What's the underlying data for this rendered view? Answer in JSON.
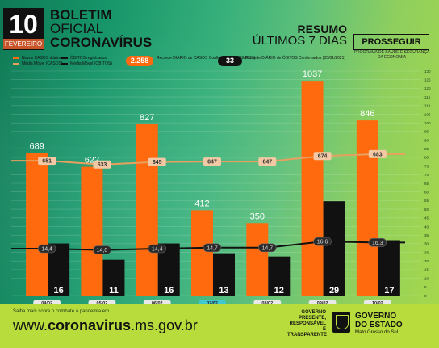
{
  "header": {
    "day": "10",
    "month": "FEVEREIRO",
    "title_line1": "BOLETIM",
    "title_line2": "OFICIAL",
    "title_line3": "CORONAVÍRUS",
    "resumo": "RESUMO",
    "ultimos": "ÚLTIMOS 7 DIAS",
    "program": "PROSSEGUIR",
    "program_sub": "PROGRAMA DE SAÚDE E SEGURANÇA DA ECONOMIA"
  },
  "legend": {
    "cases": "Novos CASOS diários",
    "cases_avg": "Média Móvel (CASOS)",
    "deaths": "ÓBITOS registrados",
    "deaths_avg": "Média Móvel (ÓBITOS)"
  },
  "records": {
    "cases_value": "2.258",
    "cases_note": "Recorde DIÁRIO de CASOS Confirmados (11/09/2020)",
    "deaths_value": "33",
    "deaths_note": "Recorde DIÁRIO de ÓBITOS Confirmados (05/01/2021)"
  },
  "footer": {
    "note": "Saiba mais sobre o combate à pandemia em",
    "site_prefix": "www.",
    "site_bold": "coronavirus",
    "site_suffix": ".ms.gov.br",
    "tag1": "GOVERNO",
    "tag2": "PRESENTE,",
    "tag3": "RESPONSÁVEL E",
    "tag4": "TRANSPARENTE",
    "gov_name1": "GOVERNO",
    "gov_name2": "DO ESTADO",
    "gov_state": "Mato Grosso do Sul"
  },
  "colors": {
    "cases_bar": "#ff6a0e",
    "deaths_bar": "#111111",
    "cases_avg_line": "#e8a060",
    "deaths_avg_line": "#111111",
    "date_pill": "#e8e8e8",
    "highlight_date": "#40c8d0"
  },
  "chart_data": {
    "type": "bar",
    "categories": [
      "04/02",
      "05/02",
      "06/02",
      "07/02",
      "08/02",
      "09/02",
      "10/02"
    ],
    "highlight_category": "07/02",
    "series": [
      {
        "name": "Novos CASOS diários",
        "values": [
          689,
          622,
          827,
          412,
          350,
          1037,
          846
        ]
      },
      {
        "name": "ÓBITOS registrados",
        "values": [
          16,
          11,
          16,
          13,
          12,
          29,
          17
        ]
      },
      {
        "name": "Média Móvel (CASOS)",
        "values": [
          651,
          633,
          645,
          647,
          647,
          674,
          683
        ]
      },
      {
        "name": "Média Móvel (ÓBITOS)",
        "values": [
          14.4,
          14.0,
          14.4,
          14.7,
          14.7,
          16.6,
          16.3
        ]
      }
    ],
    "avg_labels_cases": [
      "651",
      "633",
      "645",
      "647",
      "647",
      "674",
      "683"
    ],
    "avg_labels_deaths": [
      "14,4",
      "14,0",
      "14,4",
      "14,7",
      "14,7",
      "16,6",
      "16,3"
    ],
    "right_axis_ticks": [
      0,
      5,
      10,
      15,
      20,
      25,
      30,
      35,
      40,
      45,
      50,
      55,
      60,
      65,
      70,
      75,
      80,
      85,
      90,
      95,
      100,
      105,
      110,
      115,
      120,
      125,
      130
    ],
    "cases_ylim": [
      0,
      1100
    ],
    "deaths_ylim": [
      0,
      70
    ],
    "grid": true
  }
}
